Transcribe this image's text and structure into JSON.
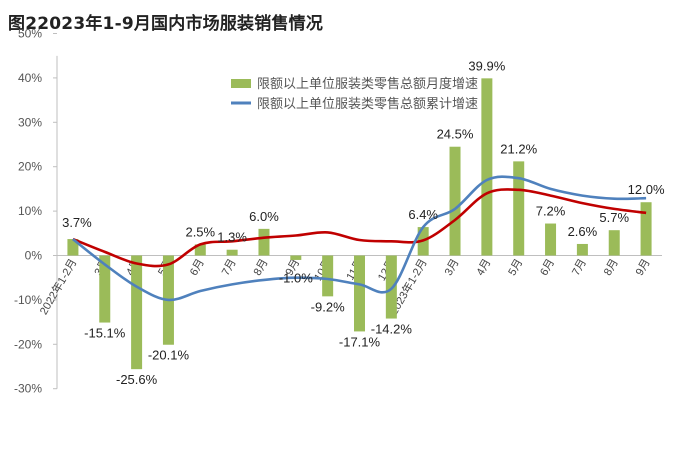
{
  "figure_title": "图22023年1-9月国内市场服装销售情况",
  "colors": {
    "bar": "#9bbb59",
    "line_blue": "#4f81bd",
    "line_red": "#c00000",
    "axis": "#bfbfbf"
  },
  "chart_data": {
    "type": "bar",
    "title": "",
    "xlabel": "",
    "ylabel": "",
    "ylim": [
      -30,
      50
    ],
    "yticks": [
      -30,
      -20,
      -10,
      0,
      10,
      20,
      30,
      40,
      50
    ],
    "ytick_labels": [
      "-30%",
      "-20%",
      "-10%",
      "0%",
      "10%",
      "20%",
      "30%",
      "40%",
      "50%"
    ],
    "grid": false,
    "legend_position": "top",
    "categories": [
      "2022年1-2月",
      "3月",
      "4月",
      "5月",
      "6月",
      "7月",
      "8月",
      "9月",
      "10月",
      "11月",
      "12月",
      "2023年1-2月",
      "3月",
      "4月",
      "5月",
      "6月",
      "7月",
      "8月",
      "9月"
    ],
    "series": [
      {
        "name": "限额以上单位服装类零售总额月度增速",
        "kind": "bar",
        "values": [
          3.7,
          -15.1,
          -25.6,
          -20.1,
          2.5,
          1.3,
          6.0,
          -1.0,
          -9.2,
          -17.1,
          -14.2,
          6.4,
          24.5,
          39.9,
          21.2,
          7.2,
          2.6,
          5.7,
          12.0
        ],
        "labels": [
          "3.7%",
          "-15.1%",
          "-25.6%",
          "-20.1%",
          "2.5%",
          "1.3%",
          "6.0%",
          "-1.0%",
          "-9.2%",
          "-17.1%",
          "-14.2%",
          "6.4%",
          "24.5%",
          "39.9%",
          "21.2%",
          "7.2%",
          "2.6%",
          "5.7%",
          "12.0%"
        ]
      },
      {
        "name": "限额以上单位服装类零售总额累计增速",
        "kind": "line",
        "values": [
          3.7,
          -2.0,
          -7.0,
          -10.0,
          -8.0,
          -6.5,
          -5.5,
          -5.0,
          -5.3,
          -6.5,
          -7.5,
          6.4,
          10.5,
          17.0,
          17.4,
          15.0,
          13.5,
          12.8,
          12.9
        ]
      },
      {
        "name": "",
        "kind": "line",
        "values": [
          3.7,
          0.8,
          -1.8,
          -2.0,
          2.5,
          3.2,
          4.0,
          4.5,
          5.2,
          3.5,
          3.2,
          3.4,
          8.0,
          14.0,
          14.8,
          13.5,
          11.8,
          10.5,
          9.6
        ]
      }
    ]
  }
}
